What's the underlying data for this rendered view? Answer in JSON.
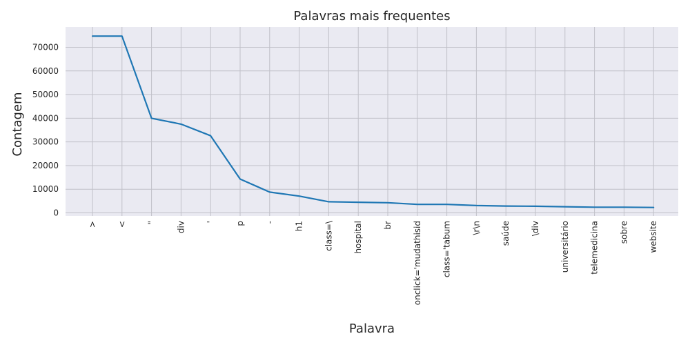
{
  "chart_data": {
    "type": "line",
    "title": "Palavras mais frequentes",
    "xlabel": "Palavra",
    "ylabel": "Contagem",
    "categories": [
      ">",
      "<",
      "\"",
      "div",
      "'",
      "p",
      "-",
      "h1",
      "class=\\",
      "hospital",
      "br",
      "onclick='mudathisid",
      "class='tabum",
      "\\r\\n",
      "saúde",
      "\\div",
      "universitário",
      "telemedicina",
      "sobre",
      "website"
    ],
    "values": [
      74700,
      74700,
      40000,
      37500,
      32600,
      14300,
      8800,
      7100,
      4700,
      4500,
      4300,
      3600,
      3600,
      3100,
      2900,
      2800,
      2600,
      2400,
      2400,
      2300
    ],
    "yticks": [
      0,
      10000,
      20000,
      30000,
      40000,
      50000,
      60000,
      70000
    ],
    "ylim": [
      -1300,
      78600
    ],
    "grid": true,
    "line_color": "#1f77b4",
    "background": "#eaeaf2",
    "grid_color": "#c0c0c8"
  }
}
